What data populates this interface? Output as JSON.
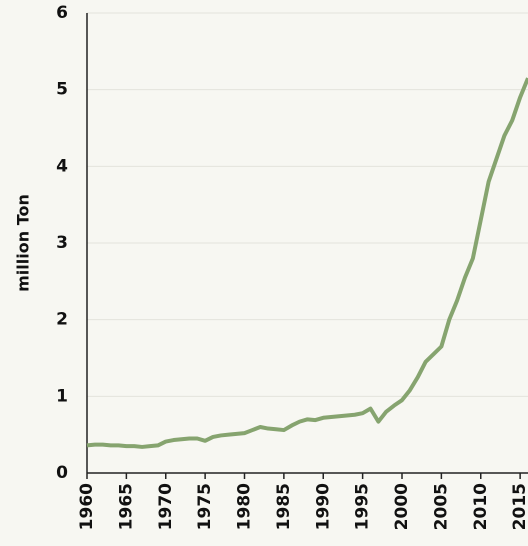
{
  "chart_data": {
    "type": "line",
    "y_label": "million Ton",
    "x": [
      1960,
      1961,
      1962,
      1963,
      1964,
      1965,
      1966,
      1967,
      1968,
      1969,
      1970,
      1971,
      1972,
      1973,
      1974,
      1975,
      1976,
      1977,
      1978,
      1979,
      1980,
      1981,
      1982,
      1983,
      1984,
      1985,
      1986,
      1987,
      1988,
      1989,
      1990,
      1991,
      1992,
      1993,
      1994,
      1995,
      1996,
      1997,
      1998,
      1999,
      2000,
      2001,
      2002,
      2003,
      2004,
      2005,
      2006,
      2007,
      2008,
      2009,
      2010,
      2011,
      2012,
      2013,
      2014,
      2015,
      2016
    ],
    "series": [
      {
        "color": "#86a46f",
        "values": [
          0.36,
          0.37,
          0.37,
          0.36,
          0.36,
          0.35,
          0.35,
          0.34,
          0.35,
          0.36,
          0.41,
          0.43,
          0.44,
          0.45,
          0.45,
          0.42,
          0.47,
          0.49,
          0.5,
          0.51,
          0.52,
          0.56,
          0.6,
          0.58,
          0.57,
          0.56,
          0.62,
          0.67,
          0.7,
          0.69,
          0.72,
          0.73,
          0.74,
          0.75,
          0.76,
          0.78,
          0.84,
          0.67,
          0.8,
          0.88,
          0.95,
          1.08,
          1.25,
          1.45,
          1.55,
          1.65,
          2.0,
          2.25,
          2.55,
          2.8,
          3.3,
          3.8,
          4.1,
          4.4,
          4.6,
          4.9,
          5.15
        ]
      }
    ],
    "xlim": [
      1960,
      2016
    ],
    "xticks": [
      1960,
      1965,
      1970,
      1975,
      1980,
      1985,
      1990,
      1995,
      2000,
      2005,
      2010,
      2015
    ],
    "ylim": [
      0,
      6
    ],
    "yticks": [
      0,
      1,
      2,
      3,
      4,
      5,
      6
    ],
    "grid": true
  }
}
